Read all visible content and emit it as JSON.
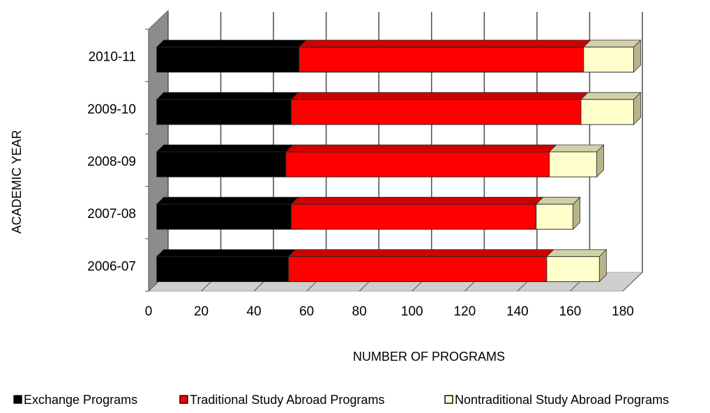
{
  "chart_data": {
    "type": "bar",
    "orientation": "horizontal",
    "stacked": true,
    "three_d": true,
    "categories": [
      "2006-07",
      "2007-08",
      "2008-09",
      "2009-10",
      "2010-11"
    ],
    "series": [
      {
        "name": "Exchange Programs",
        "values": [
          50,
          51,
          49,
          51,
          54
        ],
        "color": "#000000"
      },
      {
        "name": "Traditional Study Abroad Programs",
        "values": [
          98,
          93,
          100,
          110,
          108
        ],
        "color": "#ff0000"
      },
      {
        "name": "Nontraditional Study Abroad Programs",
        "values": [
          20,
          14,
          18,
          20,
          19
        ],
        "color": "#ffffcc"
      }
    ],
    "xlabel": "NUMBER OF PROGRAMS",
    "ylabel": "ACADEMIC YEAR",
    "xlim": [
      0,
      180
    ],
    "xticks": [
      0,
      20,
      40,
      60,
      80,
      100,
      120,
      140,
      160,
      180
    ],
    "grid": true,
    "legend_position": "bottom"
  }
}
